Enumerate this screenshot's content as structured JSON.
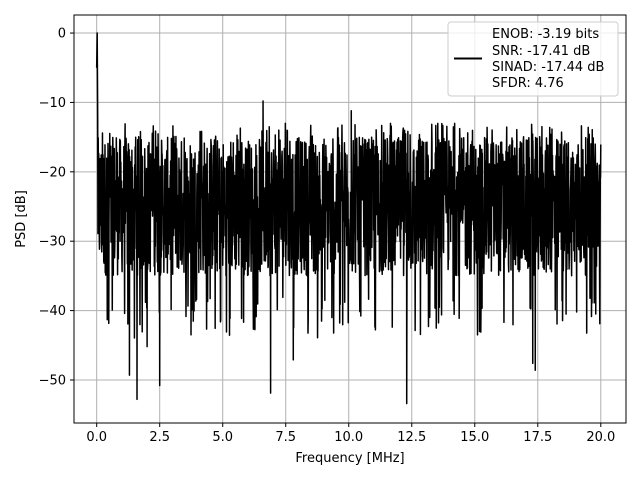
{
  "chart_data": {
    "type": "line",
    "xlabel": "Frequency [MHz]",
    "ylabel": "PSD [dB]",
    "xlim": [
      -0.9,
      21.0
    ],
    "ylim": [
      -56.2,
      2.6
    ],
    "xticks": [
      0.0,
      2.5,
      5.0,
      7.5,
      10.0,
      12.5,
      15.0,
      17.5,
      20.0
    ],
    "xtick_labels": [
      "0.0",
      "2.5",
      "5.0",
      "7.5",
      "10.0",
      "12.5",
      "15.0",
      "17.5",
      "20.0"
    ],
    "yticks": [
      0,
      -10,
      -20,
      -30,
      -40,
      -50
    ],
    "ytick_labels": [
      "0",
      "−10",
      "−20",
      "−30",
      "−40",
      "−50"
    ],
    "grid": true,
    "legend_position": "top-right",
    "series": [
      {
        "color": "#000000",
        "description": "dense noise-like PSD trace spanning 0 to 20 MHz",
        "noise_floor_db": [
          -38,
          -13
        ],
        "peak": {
          "x": 0.02,
          "y": 0.0
        },
        "notable_dips": [
          {
            "x": 1.3,
            "y": -49.3
          },
          {
            "x": 1.6,
            "y": -52.8
          },
          {
            "x": 2.0,
            "y": -45.2
          },
          {
            "x": 2.5,
            "y": -50.8
          },
          {
            "x": 6.9,
            "y": -51.9
          },
          {
            "x": 7.8,
            "y": -47.1
          },
          {
            "x": 12.3,
            "y": -53.4
          },
          {
            "x": 17.3,
            "y": -47.6
          },
          {
            "x": 17.4,
            "y": -48.6
          }
        ],
        "notable_peaks": [
          {
            "x": 6.6,
            "y": -9.8
          },
          {
            "x": 10.1,
            "y": -11.2
          }
        ]
      }
    ],
    "legend": {
      "lines": [
        "ENOB: -3.19 bits",
        "SNR: -17.41 dB",
        "SINAD: -17.44 dB",
        "SFDR: 4.76"
      ]
    }
  }
}
